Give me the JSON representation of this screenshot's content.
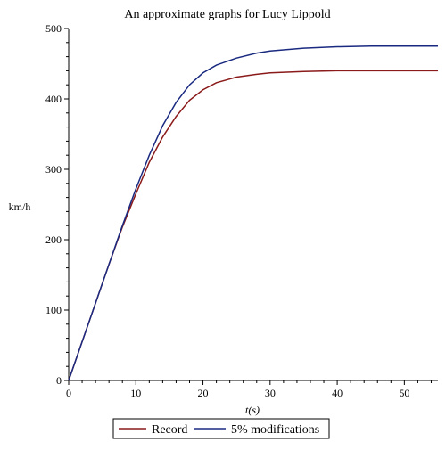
{
  "chart_data": {
    "type": "line",
    "title": "An approximate graphs for Lucy Lippold",
    "xlabel": "t(s)",
    "ylabel": "km/h",
    "xlim": [
      0,
      55
    ],
    "ylim": [
      0,
      500
    ],
    "xticks": [
      0,
      10,
      20,
      30,
      40,
      50
    ],
    "yticks": [
      0,
      100,
      200,
      300,
      400,
      500
    ],
    "grid": false,
    "legend_position": "bottom",
    "series": [
      {
        "name": "Record",
        "color": "#8b1a1a",
        "x": [
          0,
          2,
          4,
          6,
          8,
          10,
          12,
          14,
          16,
          18,
          20,
          22,
          25,
          28,
          30,
          35,
          40,
          45,
          50,
          55
        ],
        "y": [
          0,
          55,
          110,
          165,
          218,
          265,
          310,
          346,
          375,
          398,
          413,
          423,
          431,
          435,
          437,
          439,
          440,
          440,
          440,
          440
        ]
      },
      {
        "name": "5% modifications",
        "color": "#1a2a80",
        "x": [
          0,
          2,
          4,
          6,
          8,
          10,
          12,
          14,
          16,
          18,
          20,
          22,
          25,
          28,
          30,
          35,
          40,
          45,
          50,
          55
        ],
        "y": [
          0,
          55,
          110,
          165,
          220,
          272,
          320,
          362,
          395,
          420,
          437,
          448,
          458,
          465,
          468,
          472,
          474,
          475,
          475,
          475
        ]
      }
    ]
  }
}
